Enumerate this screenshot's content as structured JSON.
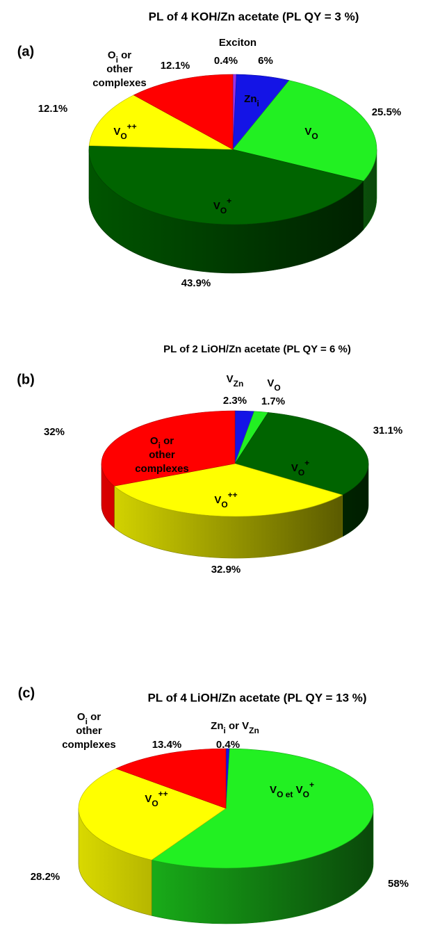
{
  "chart_data": [
    {
      "type": "pie",
      "panel": "(a)",
      "title": "PL of 4 KOH/Zn acetate (PL QY = 3 %)",
      "categories": [
        [
          [
            {
              "text": "Exciton"
            }
          ]
        ],
        [
          [
            {
              "text": "Zn"
            },
            {
              "text": "i",
              "style": "sub"
            }
          ]
        ],
        [
          [
            {
              "text": "V"
            },
            {
              "text": "O",
              "style": "sub"
            }
          ]
        ],
        [
          [
            {
              "text": "V"
            },
            {
              "text": "O",
              "style": "sub"
            },
            {
              "text": "+",
              "style": "sup"
            }
          ]
        ],
        [
          [
            {
              "text": "V"
            },
            {
              "text": "O",
              "style": "sub"
            },
            {
              "text": "++",
              "style": "sup"
            }
          ]
        ],
        [
          [
            {
              "text": "O"
            },
            {
              "text": "i",
              "style": "sub"
            },
            {
              "text": " or"
            }
          ],
          [
            {
              "text": "other"
            }
          ],
          [
            {
              "text": "complexes"
            }
          ]
        ]
      ],
      "values": [
        0.4,
        6,
        25.5,
        43.9,
        12.1,
        12.1
      ],
      "value_labels": [
        "0.4%",
        "6%",
        "25.5%",
        "43.9%",
        "12.1%",
        "12.1%"
      ],
      "colors": [
        "#9a30e8",
        "#1414e6",
        "#22f022",
        "#006400",
        "#ffff00",
        "#ff0000"
      ]
    },
    {
      "type": "pie",
      "panel": "(b)",
      "title": "PL of 2 LiOH/Zn acetate (PL QY = 6 %)",
      "categories": [
        [
          [
            {
              "text": "V"
            },
            {
              "text": "Zn",
              "style": "sub"
            }
          ]
        ],
        [
          [
            {
              "text": "V"
            },
            {
              "text": "O",
              "style": "sub"
            }
          ]
        ],
        [
          [
            {
              "text": "V"
            },
            {
              "text": "O",
              "style": "sub"
            },
            {
              "text": "+",
              "style": "sup"
            }
          ]
        ],
        [
          [
            {
              "text": "V"
            },
            {
              "text": "O",
              "style": "sub"
            },
            {
              "text": "++",
              "style": "sup"
            }
          ]
        ],
        [
          [
            {
              "text": "O"
            },
            {
              "text": "i",
              "style": "sub"
            },
            {
              "text": " or"
            }
          ],
          [
            {
              "text": "other"
            }
          ],
          [
            {
              "text": "complexes"
            }
          ]
        ]
      ],
      "values": [
        2.3,
        1.7,
        31.1,
        32.9,
        32
      ],
      "value_labels": [
        "2.3%",
        "1.7%",
        "31.1%",
        "32.9%",
        "32%"
      ],
      "colors": [
        "#1414e6",
        "#22f022",
        "#006400",
        "#ffff00",
        "#ff0000"
      ]
    },
    {
      "type": "pie",
      "panel": "(c)",
      "title": "PL of 4 LiOH/Zn acetate (PL QY = 13 %)",
      "categories": [
        [
          [
            {
              "text": "Zn"
            },
            {
              "text": "i",
              "style": "sub"
            },
            {
              "text": " or V"
            },
            {
              "text": "Zn",
              "style": "sub"
            }
          ]
        ],
        [
          [
            {
              "text": "V"
            },
            {
              "text": "O et",
              "style": "sub"
            },
            {
              "text": " V"
            },
            {
              "text": "O",
              "style": "sub"
            },
            {
              "text": "+",
              "style": "sup"
            }
          ]
        ],
        [
          [
            {
              "text": "V"
            },
            {
              "text": "O",
              "style": "sub"
            },
            {
              "text": "++",
              "style": "sup"
            }
          ]
        ],
        [
          [
            {
              "text": "O"
            },
            {
              "text": "i",
              "style": "sub"
            },
            {
              "text": " or"
            }
          ],
          [
            {
              "text": "other"
            }
          ],
          [
            {
              "text": "complexes"
            }
          ]
        ]
      ],
      "values": [
        0.4,
        58,
        28.2,
        13.4
      ],
      "value_labels": [
        "0.4%",
        "58%",
        "28.2%",
        "13.4%"
      ],
      "colors": [
        "#1414e6",
        "#22f022",
        "#ffff00",
        "#ff0000"
      ]
    }
  ]
}
